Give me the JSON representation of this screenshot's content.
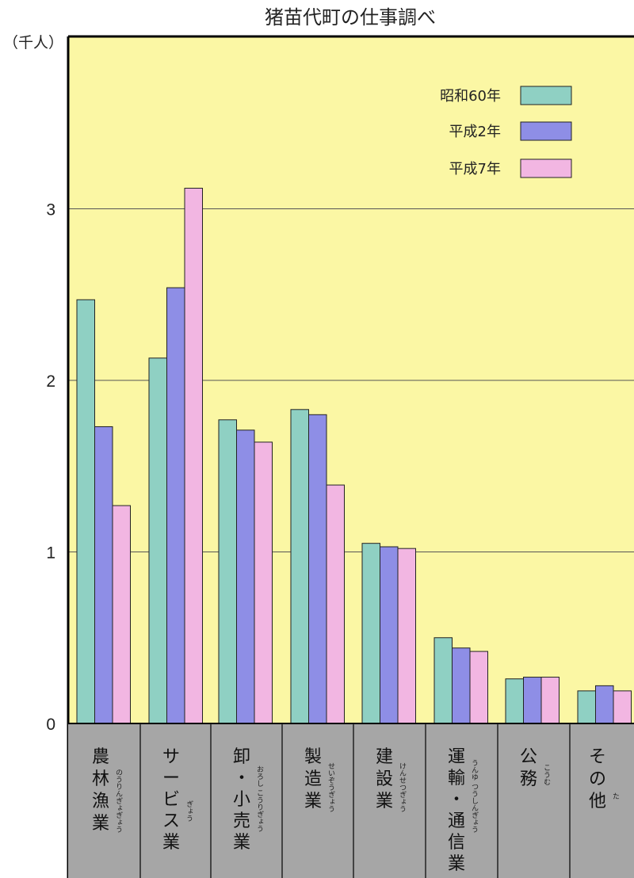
{
  "chart_data": {
    "type": "bar",
    "title": "猪苗代町の仕事調べ",
    "ylabel": "（千人）",
    "ylim": [
      0,
      3.7
    ],
    "yticks": [
      0,
      1,
      2,
      3
    ],
    "grid": true,
    "legend_position": "top-right",
    "categories": [
      {
        "label": "農林漁業",
        "lines": [
          "農",
          "林",
          "漁",
          "業"
        ],
        "ruby": "のうりんぎょぎょう"
      },
      {
        "label": "サービス業",
        "lines": [
          "サ",
          "ー",
          "ビ",
          "ス",
          "業"
        ],
        "ruby": "ぎょう"
      },
      {
        "label": "卸・小売業",
        "lines": [
          "卸",
          "・",
          "小",
          "売",
          "業"
        ],
        "ruby": "おろし こうりぎょう"
      },
      {
        "label": "製造業",
        "lines": [
          "製",
          "造",
          "業"
        ],
        "ruby": "せいぞうぎょう"
      },
      {
        "label": "建設業",
        "lines": [
          "建",
          "設",
          "業"
        ],
        "ruby": "けんせつぎょう"
      },
      {
        "label": "運輸・通信業",
        "lines": [
          "運",
          "輸",
          "・",
          "通",
          "信",
          "業"
        ],
        "ruby": "うんゆ つうしんぎょう"
      },
      {
        "label": "公務",
        "lines": [
          "公",
          "務"
        ],
        "ruby": "こうむ"
      },
      {
        "label": "その他",
        "lines": [
          "そ",
          "の",
          "他"
        ],
        "ruby": "た"
      }
    ],
    "series": [
      {
        "name": "昭和60年",
        "color": "#8fd0c3",
        "values": [
          2.47,
          2.13,
          1.77,
          1.83,
          1.05,
          0.5,
          0.26,
          0.19
        ]
      },
      {
        "name": "平成2年",
        "color": "#8e8ee6",
        "values": [
          1.73,
          2.54,
          1.71,
          1.8,
          1.03,
          0.44,
          0.27,
          0.22
        ]
      },
      {
        "name": "平成7年",
        "color": "#f2b6e2",
        "values": [
          1.27,
          3.12,
          1.64,
          1.39,
          1.02,
          0.42,
          0.27,
          0.19
        ]
      }
    ],
    "colors": {
      "plot_background": "#fbf7a4",
      "category_band": "#a6a6a6",
      "grid": "#555555"
    }
  }
}
